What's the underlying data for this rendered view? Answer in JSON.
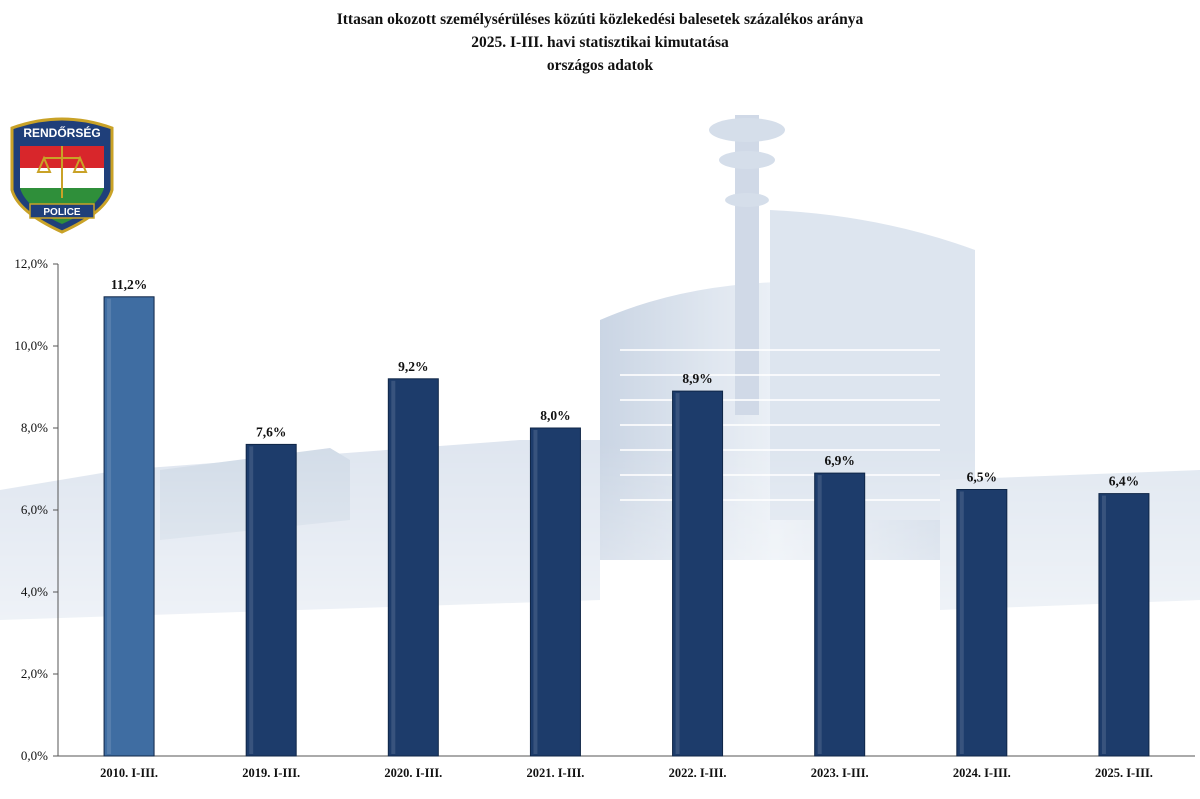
{
  "title_lines": [
    "Ittasan okozott személysérüléses közúti közlekedési balesetek százalékos aránya",
    "2025. I-III. havi statisztikai kimutatása",
    "országos adatok"
  ],
  "logo": {
    "top_text": "RENDŐRSÉG",
    "bottom_text": "POLICE"
  },
  "colors": {
    "highlight_bar": "#3f6da2",
    "bar": "#1d3c6b",
    "bar_edge": "#0f2647",
    "axis": "#555555",
    "building": "#b9c8dc"
  },
  "chart_data": {
    "type": "bar",
    "title": "Ittasan okozott személysérüléses közúti közlekedési balesetek százalékos aránya",
    "xlabel": "",
    "ylabel": "",
    "categories": [
      "2010. I-III.",
      "2019. I-III.",
      "2020. I-III.",
      "2021. I-III.",
      "2022. I-III.",
      "2023. I-III.",
      "2024. I-III.",
      "2025. I-III."
    ],
    "values": [
      11.2,
      7.6,
      9.2,
      8.0,
      8.9,
      6.9,
      6.5,
      6.4
    ],
    "value_labels": [
      "11,2%",
      "7,6%",
      "9,2%",
      "8,0%",
      "8,9%",
      "6,9%",
      "6,5%",
      "6,4%"
    ],
    "highlight_index": 0,
    "ylim": [
      0,
      12
    ],
    "yticks": [
      0,
      2,
      4,
      6,
      8,
      10,
      12
    ],
    "ytick_labels": [
      "0,0%",
      "2,0%",
      "4,0%",
      "6,0%",
      "8,0%",
      "10,0%",
      "12,0%"
    ],
    "grid": false
  }
}
